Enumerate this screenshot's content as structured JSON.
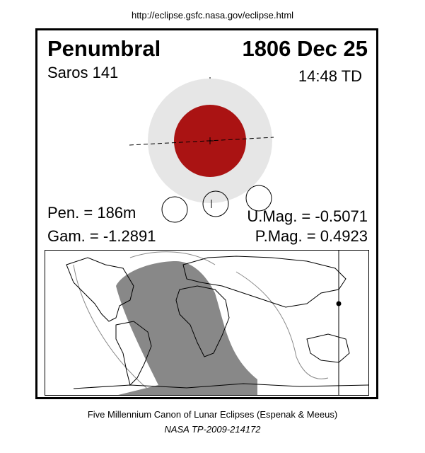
{
  "source_url": "http://eclipse.gsfc.nasa.gov/eclipse.html",
  "eclipse": {
    "type": "Penumbral",
    "date": "1806 Dec 25",
    "saros": "Saros 141",
    "time": "14:48 TD",
    "pen": "Pen. = 186m",
    "gam": "Gam. = -1.2891",
    "umag": "U.Mag. = -0.5071",
    "pmag": "P.Mag. = 0.4923"
  },
  "colors": {
    "penumbra": "#e6e6e6",
    "umbra": "#aa1313",
    "night_shade": "#888888",
    "border": "#000000"
  },
  "footer": {
    "line1": "Five Millennium Canon of Lunar Eclipses (Espenak & Meeus)",
    "line2": "NASA TP-2009-214172"
  }
}
